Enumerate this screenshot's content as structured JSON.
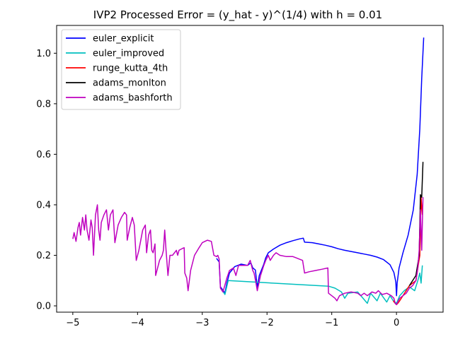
{
  "chart_data": {
    "type": "line",
    "title": "IVP2 Processed Error = (y_hat - y)^(1/4) with h = 0.01",
    "xlabel": "",
    "ylabel": "",
    "xlim": [
      -5.25,
      0.72
    ],
    "ylim": [
      -0.025,
      1.11
    ],
    "xticks": [
      -5,
      -4,
      -3,
      -2,
      -1,
      0
    ],
    "xtick_labels": [
      "−5",
      "−4",
      "−3",
      "−2",
      "−1",
      "0"
    ],
    "yticks": [
      0.0,
      0.2,
      0.4,
      0.6,
      0.8,
      1.0
    ],
    "ytick_labels": [
      "0.0",
      "0.2",
      "0.4",
      "0.6",
      "0.8",
      "1.0"
    ],
    "grid": false,
    "legend_position": "top-left",
    "series": [
      {
        "name": "euler_explicit",
        "color": "#0000ff",
        "points": [
          [
            -2.78,
            0.188
          ],
          [
            -2.74,
            0.174
          ],
          [
            -2.72,
            0.075
          ],
          [
            -2.68,
            0.062
          ],
          [
            -2.65,
            0.05
          ],
          [
            -2.62,
            0.09
          ],
          [
            -2.58,
            0.13
          ],
          [
            -2.5,
            0.155
          ],
          [
            -2.4,
            0.165
          ],
          [
            -2.3,
            0.16
          ],
          [
            -2.25,
            0.17
          ],
          [
            -2.22,
            0.15
          ],
          [
            -2.18,
            0.142
          ],
          [
            -2.15,
            0.072
          ],
          [
            -2.12,
            0.12
          ],
          [
            -2.05,
            0.165
          ],
          [
            -2.02,
            0.19
          ],
          [
            -1.98,
            0.21
          ],
          [
            -1.9,
            0.225
          ],
          [
            -1.8,
            0.24
          ],
          [
            -1.7,
            0.25
          ],
          [
            -1.6,
            0.258
          ],
          [
            -1.5,
            0.265
          ],
          [
            -1.44,
            0.268
          ],
          [
            -1.42,
            0.252
          ],
          [
            -1.3,
            0.25
          ],
          [
            -1.2,
            0.245
          ],
          [
            -1.1,
            0.24
          ],
          [
            -1.0,
            0.234
          ],
          [
            -0.9,
            0.226
          ],
          [
            -0.8,
            0.22
          ],
          [
            -0.7,
            0.215
          ],
          [
            -0.6,
            0.21
          ],
          [
            -0.5,
            0.205
          ],
          [
            -0.4,
            0.2
          ],
          [
            -0.3,
            0.193
          ],
          [
            -0.2,
            0.183
          ],
          [
            -0.1,
            0.163
          ],
          [
            -0.04,
            0.132
          ],
          [
            -0.01,
            0.095
          ],
          [
            0.0,
            0.04
          ],
          [
            0.01,
            0.09
          ],
          [
            0.04,
            0.15
          ],
          [
            0.1,
            0.21
          ],
          [
            0.18,
            0.28
          ],
          [
            0.26,
            0.38
          ],
          [
            0.32,
            0.52
          ],
          [
            0.36,
            0.7
          ],
          [
            0.39,
            0.9
          ],
          [
            0.42,
            1.062
          ]
        ]
      },
      {
        "name": "euler_improved",
        "color": "#00bfbf",
        "points": [
          [
            -2.7,
            0.065
          ],
          [
            -2.65,
            0.045
          ],
          [
            -2.6,
            0.1
          ],
          [
            -1.05,
            0.078
          ],
          [
            -0.95,
            0.07
          ],
          [
            -0.85,
            0.055
          ],
          [
            -0.8,
            0.03
          ],
          [
            -0.75,
            0.05
          ],
          [
            -0.6,
            0.055
          ],
          [
            -0.45,
            0.01
          ],
          [
            -0.4,
            0.05
          ],
          [
            -0.3,
            0.02
          ],
          [
            -0.25,
            0.05
          ],
          [
            -0.15,
            0.015
          ],
          [
            -0.1,
            0.04
          ],
          [
            -0.05,
            0.02
          ],
          [
            0.0,
            0.01
          ],
          [
            0.05,
            0.04
          ],
          [
            0.12,
            0.06
          ],
          [
            0.2,
            0.075
          ],
          [
            0.28,
            0.06
          ],
          [
            0.33,
            0.1
          ],
          [
            0.36,
            0.13
          ],
          [
            0.38,
            0.09
          ],
          [
            0.4,
            0.16
          ]
        ]
      },
      {
        "name": "runge_kutta_4th",
        "color": "#ff0000",
        "points": [
          [
            -0.05,
            0.02
          ],
          [
            -0.02,
            0.01
          ],
          [
            0.0,
            0.005
          ],
          [
            0.02,
            0.01
          ],
          [
            0.05,
            0.02
          ],
          [
            0.2,
            0.08
          ],
          [
            0.3,
            0.1
          ],
          [
            0.36,
            0.2
          ],
          [
            0.38,
            0.43
          ],
          [
            0.4,
            0.36
          ]
        ]
      },
      {
        "name": "adams_monlton",
        "color": "#000000",
        "points": [
          [
            0.2,
            0.08
          ],
          [
            0.3,
            0.12
          ],
          [
            0.35,
            0.2
          ],
          [
            0.37,
            0.44
          ],
          [
            0.39,
            0.43
          ],
          [
            0.41,
            0.57
          ]
        ]
      },
      {
        "name": "adams_bashforth",
        "color": "#bf00bf",
        "points": [
          [
            -5.0,
            0.265
          ],
          [
            -4.98,
            0.29
          ],
          [
            -4.95,
            0.255
          ],
          [
            -4.92,
            0.31
          ],
          [
            -4.9,
            0.33
          ],
          [
            -4.88,
            0.28
          ],
          [
            -4.85,
            0.35
          ],
          [
            -4.82,
            0.3
          ],
          [
            -4.8,
            0.36
          ],
          [
            -4.78,
            0.3
          ],
          [
            -4.75,
            0.26
          ],
          [
            -4.72,
            0.34
          ],
          [
            -4.7,
            0.31
          ],
          [
            -4.68,
            0.2
          ],
          [
            -4.65,
            0.36
          ],
          [
            -4.62,
            0.4
          ],
          [
            -4.6,
            0.3
          ],
          [
            -4.58,
            0.26
          ],
          [
            -4.56,
            0.33
          ],
          [
            -4.52,
            0.36
          ],
          [
            -4.48,
            0.38
          ],
          [
            -4.45,
            0.3
          ],
          [
            -4.42,
            0.36
          ],
          [
            -4.38,
            0.38
          ],
          [
            -4.35,
            0.25
          ],
          [
            -4.3,
            0.32
          ],
          [
            -4.25,
            0.35
          ],
          [
            -4.2,
            0.37
          ],
          [
            -4.17,
            0.36
          ],
          [
            -4.16,
            0.26
          ],
          [
            -4.12,
            0.31
          ],
          [
            -4.08,
            0.35
          ],
          [
            -4.05,
            0.32
          ],
          [
            -4.02,
            0.18
          ],
          [
            -3.98,
            0.22
          ],
          [
            -3.92,
            0.3
          ],
          [
            -3.88,
            0.32
          ],
          [
            -3.86,
            0.21
          ],
          [
            -3.83,
            0.28
          ],
          [
            -3.8,
            0.3
          ],
          [
            -3.78,
            0.22
          ],
          [
            -3.76,
            0.21
          ],
          [
            -3.73,
            0.245
          ],
          [
            -3.72,
            0.12
          ],
          [
            -3.66,
            0.18
          ],
          [
            -3.62,
            0.2
          ],
          [
            -3.6,
            0.22
          ],
          [
            -3.58,
            0.3
          ],
          [
            -3.56,
            0.22
          ],
          [
            -3.53,
            0.12
          ],
          [
            -3.5,
            0.2
          ],
          [
            -3.46,
            0.2
          ],
          [
            -3.4,
            0.22
          ],
          [
            -3.38,
            0.2
          ],
          [
            -3.36,
            0.22
          ],
          [
            -3.3,
            0.228
          ],
          [
            -3.28,
            0.23
          ],
          [
            -3.27,
            0.13
          ],
          [
            -3.24,
            0.11
          ],
          [
            -3.22,
            0.06
          ],
          [
            -3.18,
            0.14
          ],
          [
            -3.12,
            0.2
          ],
          [
            -3.05,
            0.23
          ],
          [
            -3.0,
            0.25
          ],
          [
            -2.92,
            0.26
          ],
          [
            -2.86,
            0.255
          ],
          [
            -2.82,
            0.2
          ],
          [
            -2.78,
            0.195
          ],
          [
            -2.76,
            0.2
          ],
          [
            -2.74,
            0.185
          ],
          [
            -2.72,
            0.07
          ],
          [
            -2.68,
            0.055
          ],
          [
            -2.62,
            0.11
          ],
          [
            -2.58,
            0.14
          ],
          [
            -2.52,
            0.15
          ],
          [
            -2.48,
            0.12
          ],
          [
            -2.44,
            0.16
          ],
          [
            -2.38,
            0.16
          ],
          [
            -2.3,
            0.16
          ],
          [
            -2.26,
            0.18
          ],
          [
            -2.22,
            0.14
          ],
          [
            -2.2,
            0.13
          ],
          [
            -2.17,
            0.09
          ],
          [
            -2.15,
            0.06
          ],
          [
            -2.1,
            0.12
          ],
          [
            -2.05,
            0.16
          ],
          [
            -2.02,
            0.18
          ],
          [
            -1.98,
            0.2
          ],
          [
            -1.95,
            0.18
          ],
          [
            -1.9,
            0.2
          ],
          [
            -1.86,
            0.21
          ],
          [
            -1.8,
            0.2
          ],
          [
            -1.7,
            0.195
          ],
          [
            -1.6,
            0.195
          ],
          [
            -1.55,
            0.19
          ],
          [
            -1.5,
            0.185
          ],
          [
            -1.45,
            0.18
          ],
          [
            -1.42,
            0.13
          ],
          [
            -1.35,
            0.135
          ],
          [
            -1.25,
            0.14
          ],
          [
            -1.15,
            0.145
          ],
          [
            -1.06,
            0.15
          ],
          [
            -1.05,
            0.05
          ],
          [
            -1.0,
            0.04
          ],
          [
            -0.95,
            0.03
          ],
          [
            -0.92,
            0.02
          ],
          [
            -0.88,
            0.04
          ],
          [
            -0.8,
            0.05
          ],
          [
            -0.7,
            0.055
          ],
          [
            -0.6,
            0.05
          ],
          [
            -0.55,
            0.04
          ],
          [
            -0.5,
            0.05
          ],
          [
            -0.45,
            0.04
          ],
          [
            -0.38,
            0.055
          ],
          [
            -0.32,
            0.05
          ],
          [
            -0.28,
            0.06
          ],
          [
            -0.22,
            0.045
          ],
          [
            -0.15,
            0.05
          ],
          [
            -0.08,
            0.04
          ],
          [
            -0.04,
            0.03
          ],
          [
            -0.02,
            0.01
          ],
          [
            0.0,
            0.005
          ],
          [
            0.02,
            0.015
          ],
          [
            0.05,
            0.03
          ],
          [
            0.1,
            0.04
          ],
          [
            0.15,
            0.05
          ],
          [
            0.2,
            0.07
          ],
          [
            0.25,
            0.08
          ],
          [
            0.3,
            0.1
          ],
          [
            0.33,
            0.15
          ],
          [
            0.35,
            0.22
          ],
          [
            0.37,
            0.38
          ],
          [
            0.39,
            0.22
          ],
          [
            0.41,
            0.43
          ]
        ]
      }
    ]
  }
}
